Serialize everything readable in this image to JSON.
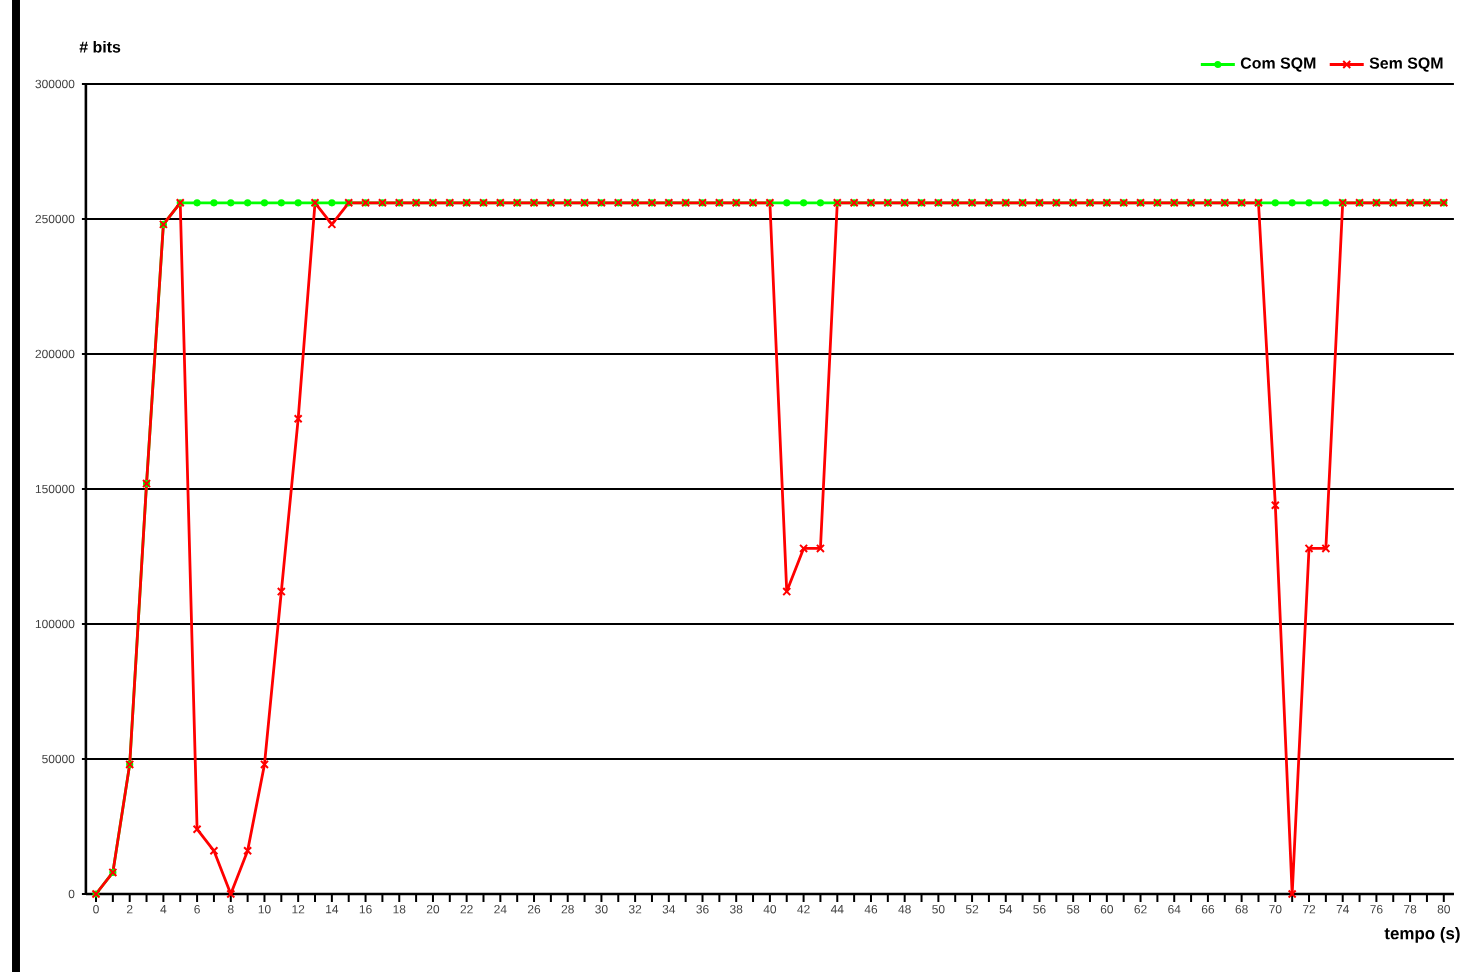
{
  "chart_data": {
    "type": "line",
    "xlabel": "tempo (s)",
    "ylabel": "# bits",
    "x": [
      0,
      1,
      2,
      3,
      4,
      5,
      6,
      7,
      8,
      9,
      10,
      11,
      12,
      13,
      14,
      15,
      16,
      17,
      18,
      19,
      20,
      21,
      22,
      23,
      24,
      25,
      26,
      27,
      28,
      29,
      30,
      31,
      32,
      33,
      34,
      35,
      36,
      37,
      38,
      39,
      40,
      41,
      42,
      43,
      44,
      45,
      46,
      47,
      48,
      49,
      50,
      51,
      52,
      53,
      54,
      55,
      56,
      57,
      58,
      59,
      60,
      61,
      62,
      63,
      64,
      65,
      66,
      67,
      68,
      69,
      70,
      71,
      72,
      73,
      74,
      75,
      76,
      77,
      78,
      79,
      80
    ],
    "series": [
      {
        "name": "Com SQM",
        "color": "#00ff00",
        "marker": "circle",
        "values": [
          0,
          8000,
          48000,
          152000,
          248000,
          256000,
          256000,
          256000,
          256000,
          256000,
          256000,
          256000,
          256000,
          256000,
          256000,
          256000,
          256000,
          256000,
          256000,
          256000,
          256000,
          256000,
          256000,
          256000,
          256000,
          256000,
          256000,
          256000,
          256000,
          256000,
          256000,
          256000,
          256000,
          256000,
          256000,
          256000,
          256000,
          256000,
          256000,
          256000,
          256000,
          256000,
          256000,
          256000,
          256000,
          256000,
          256000,
          256000,
          256000,
          256000,
          256000,
          256000,
          256000,
          256000,
          256000,
          256000,
          256000,
          256000,
          256000,
          256000,
          256000,
          256000,
          256000,
          256000,
          256000,
          256000,
          256000,
          256000,
          256000,
          256000,
          256000,
          256000,
          256000,
          256000,
          256000,
          256000,
          256000,
          256000,
          256000,
          256000,
          256000
        ]
      },
      {
        "name": "Sem SQM",
        "color": "#ff0000",
        "marker": "cross",
        "values": [
          0,
          8000,
          48000,
          152000,
          248000,
          256000,
          24000,
          16000,
          0,
          16000,
          48000,
          112000,
          176000,
          256000,
          248000,
          256000,
          256000,
          256000,
          256000,
          256000,
          256000,
          256000,
          256000,
          256000,
          256000,
          256000,
          256000,
          256000,
          256000,
          256000,
          256000,
          256000,
          256000,
          256000,
          256000,
          256000,
          256000,
          256000,
          256000,
          256000,
          256000,
          112000,
          128000,
          128000,
          256000,
          256000,
          256000,
          256000,
          256000,
          256000,
          256000,
          256000,
          256000,
          256000,
          256000,
          256000,
          256000,
          256000,
          256000,
          256000,
          256000,
          256000,
          256000,
          256000,
          256000,
          256000,
          256000,
          256000,
          256000,
          256000,
          144000,
          0,
          128000,
          128000,
          256000,
          256000,
          256000,
          256000,
          256000,
          256000,
          256000
        ]
      }
    ],
    "xlim": [
      -0.6,
      80.6
    ],
    "xticks": [
      0,
      {
        "value": 1,
        "label": null
      },
      2,
      {
        "value": 3,
        "label": null
      },
      4,
      {
        "value": 5,
        "label": null
      },
      6,
      {
        "value": 7,
        "label": null
      },
      8,
      {
        "value": 9,
        "label": null
      },
      10,
      {
        "value": 11,
        "label": null
      },
      12,
      {
        "value": 13,
        "label": null
      },
      14,
      {
        "value": 15,
        "label": null
      },
      16,
      {
        "value": 17,
        "label": null
      },
      18,
      {
        "value": 19,
        "label": null
      },
      20,
      {
        "value": 21,
        "label": null
      },
      22,
      {
        "value": 23,
        "label": null
      },
      24,
      {
        "value": 25,
        "label": null
      },
      26,
      {
        "value": 27,
        "label": null
      },
      28,
      {
        "value": 29,
        "label": null
      },
      30,
      {
        "value": 31,
        "label": null
      },
      32,
      {
        "value": 33,
        "label": null
      },
      34,
      {
        "value": 35,
        "label": null
      },
      36,
      {
        "value": 37,
        "label": null
      },
      38,
      {
        "value": 39,
        "label": null
      },
      40,
      {
        "value": 41,
        "label": null
      },
      42,
      {
        "value": 43,
        "label": null
      },
      44,
      {
        "value": 45,
        "label": null
      },
      46,
      {
        "value": 47,
        "label": null
      },
      48,
      {
        "value": 49,
        "label": null
      },
      50,
      {
        "value": 51,
        "label": null
      },
      52,
      {
        "value": 53,
        "label": null
      },
      54,
      {
        "value": 55,
        "label": null
      },
      56,
      {
        "value": 57,
        "label": null
      },
      58,
      {
        "value": 59,
        "label": null
      },
      60,
      {
        "value": 61,
        "label": null
      },
      62,
      {
        "value": 63,
        "label": null
      },
      64,
      {
        "value": 65,
        "label": null
      },
      66,
      {
        "value": 67,
        "label": null
      },
      68,
      {
        "value": 69,
        "label": null
      },
      70,
      {
        "value": 71,
        "label": null
      },
      72,
      {
        "value": 73,
        "label": null
      },
      74,
      {
        "value": 75,
        "label": null
      },
      76,
      {
        "value": 77,
        "label": null
      },
      78,
      {
        "value": 79,
        "label": null
      },
      80
    ],
    "ylim": [
      0,
      300000
    ],
    "yticks": [
      0,
      50000,
      100000,
      150000,
      200000,
      250000,
      300000
    ],
    "grid": "y",
    "legend": "top right"
  }
}
